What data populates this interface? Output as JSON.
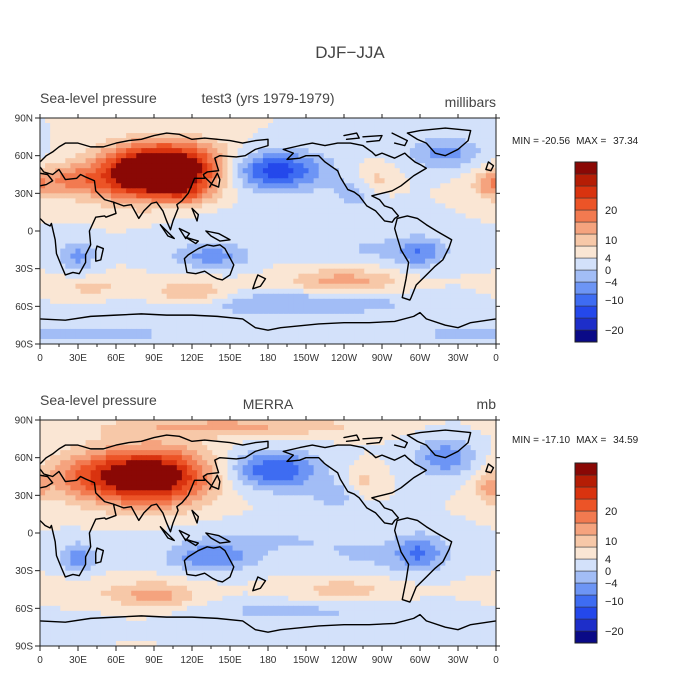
{
  "figure_title": "DJF−JJA",
  "panels": [
    {
      "id": "top",
      "left_title": "Sea-level pressure",
      "center_title": "test3 (yrs 1979-1979)",
      "units": "millibars",
      "min_label": "MIN = ",
      "min_value": "-20.56",
      "max_label": "MAX = ",
      "max_value": "37.34",
      "range": [
        -20.56,
        37.34
      ],
      "anomaly_centers": [
        {
          "lon": 100,
          "lat": 50,
          "value": 35,
          "sx": 32,
          "sy": 14
        },
        {
          "lon": 75,
          "lat": 40,
          "value": 12,
          "sx": 26,
          "sy": 14
        },
        {
          "lon": 20,
          "lat": 40,
          "value": 11,
          "sx": 22,
          "sy": 9
        },
        {
          "lon": 115,
          "lat": 30,
          "value": 8,
          "sx": 14,
          "sy": 7
        },
        {
          "lon": 355,
          "lat": 35,
          "value": 7,
          "sx": 8,
          "sy": 8
        },
        {
          "lon": 265,
          "lat": 40,
          "value": 6,
          "sx": 10,
          "sy": 8
        },
        {
          "lon": 185,
          "lat": 48,
          "value": -19,
          "sx": 28,
          "sy": 11
        },
        {
          "lon": 320,
          "lat": 62,
          "value": -10,
          "sx": 20,
          "sy": 9
        },
        {
          "lon": 250,
          "lat": 30,
          "value": -6,
          "sx": 14,
          "sy": 8
        },
        {
          "lon": 30,
          "lat": -20,
          "value": -9,
          "sx": 10,
          "sy": 9
        },
        {
          "lon": 135,
          "lat": -20,
          "value": -10,
          "sx": 22,
          "sy": 7
        },
        {
          "lon": 300,
          "lat": -18,
          "value": -8,
          "sx": 12,
          "sy": 9
        },
        {
          "lon": 240,
          "lat": -40,
          "value": 10,
          "sx": 30,
          "sy": 7
        },
        {
          "lon": 120,
          "lat": -50,
          "value": 9,
          "sx": 22,
          "sy": 7
        },
        {
          "lon": 40,
          "lat": -45,
          "value": 5,
          "sx": 25,
          "sy": 6
        },
        {
          "lon": 200,
          "lat": -58,
          "value": -8,
          "sx": 70,
          "sy": 7
        },
        {
          "lon": 20,
          "lat": -82,
          "value": -8,
          "sx": 60,
          "sy": 5
        },
        {
          "lon": 280,
          "lat": -15,
          "value": -5,
          "sx": 40,
          "sy": 8
        },
        {
          "lon": 180,
          "lat": 5,
          "value": -3,
          "sx": 50,
          "sy": 10
        }
      ]
    },
    {
      "id": "bottom",
      "left_title": "Sea-level pressure",
      "center_title": "MERRA",
      "units": "mb",
      "min_label": "MIN = ",
      "min_value": "-17.10",
      "max_label": "MAX = ",
      "max_value": "34.59",
      "range": [
        -17.1,
        34.59
      ],
      "anomaly_centers": [
        {
          "lon": 90,
          "lat": 45,
          "value": 30,
          "sx": 32,
          "sy": 16
        },
        {
          "lon": 40,
          "lat": 45,
          "value": 12,
          "sx": 28,
          "sy": 14
        },
        {
          "lon": 150,
          "lat": 85,
          "value": 9,
          "sx": 70,
          "sy": 6
        },
        {
          "lon": 355,
          "lat": 35,
          "value": 8,
          "sx": 8,
          "sy": 8
        },
        {
          "lon": 255,
          "lat": 40,
          "value": 6,
          "sx": 10,
          "sy": 9
        },
        {
          "lon": 185,
          "lat": 50,
          "value": -16,
          "sx": 26,
          "sy": 11
        },
        {
          "lon": 320,
          "lat": 60,
          "value": -11,
          "sx": 18,
          "sy": 11
        },
        {
          "lon": 235,
          "lat": 30,
          "value": -6,
          "sx": 16,
          "sy": 8
        },
        {
          "lon": 30,
          "lat": -20,
          "value": -10,
          "sx": 10,
          "sy": 9
        },
        {
          "lon": 135,
          "lat": -20,
          "value": -11,
          "sx": 24,
          "sy": 8
        },
        {
          "lon": 300,
          "lat": -15,
          "value": -10,
          "sx": 14,
          "sy": 10
        },
        {
          "lon": 90,
          "lat": -50,
          "value": 10,
          "sx": 24,
          "sy": 8
        },
        {
          "lon": 240,
          "lat": -45,
          "value": 6,
          "sx": 30,
          "sy": 7
        },
        {
          "lon": 20,
          "lat": -45,
          "value": 4,
          "sx": 25,
          "sy": 6
        },
        {
          "lon": 200,
          "lat": -62,
          "value": -5,
          "sx": 70,
          "sy": 6
        },
        {
          "lon": 180,
          "lat": -5,
          "value": -4,
          "sx": 60,
          "sy": 10
        },
        {
          "lon": 270,
          "lat": -20,
          "value": -4,
          "sx": 40,
          "sy": 10
        }
      ]
    }
  ],
  "colorbar": {
    "levels": [
      -20,
      -16,
      -12,
      -8,
      -4,
      0,
      4,
      8,
      12,
      16,
      20,
      24
    ],
    "labels": [
      {
        "level": 20,
        "text": "20"
      },
      {
        "level": 10,
        "text": "10"
      },
      {
        "level": 4,
        "text": "4"
      },
      {
        "level": 0,
        "text": "0"
      },
      {
        "level": -4,
        "text": "−4"
      },
      {
        "level": -10,
        "text": "−10"
      },
      {
        "level": -20,
        "text": "−20"
      }
    ],
    "colors": [
      "#0a0a87",
      "#1d2ec9",
      "#2448eb",
      "#3e6cf2",
      "#6d95f5",
      "#a2bdf6",
      "#d3e1fa",
      "#fae6d4",
      "#f7c8a8",
      "#f5a37e",
      "#f27a50",
      "#ec5427",
      "#d9330f",
      "#b51d05",
      "#8a0805"
    ]
  },
  "map": {
    "lon_ticks": [
      "0",
      "30E",
      "60E",
      "90E",
      "120E",
      "150E",
      "180",
      "150W",
      "120W",
      "90W",
      "60W",
      "30W",
      "0"
    ],
    "lat_ticks": [
      "90N",
      "60N",
      "30N",
      "0",
      "30S",
      "60S",
      "90S"
    ],
    "coastline_color": "#000000"
  }
}
